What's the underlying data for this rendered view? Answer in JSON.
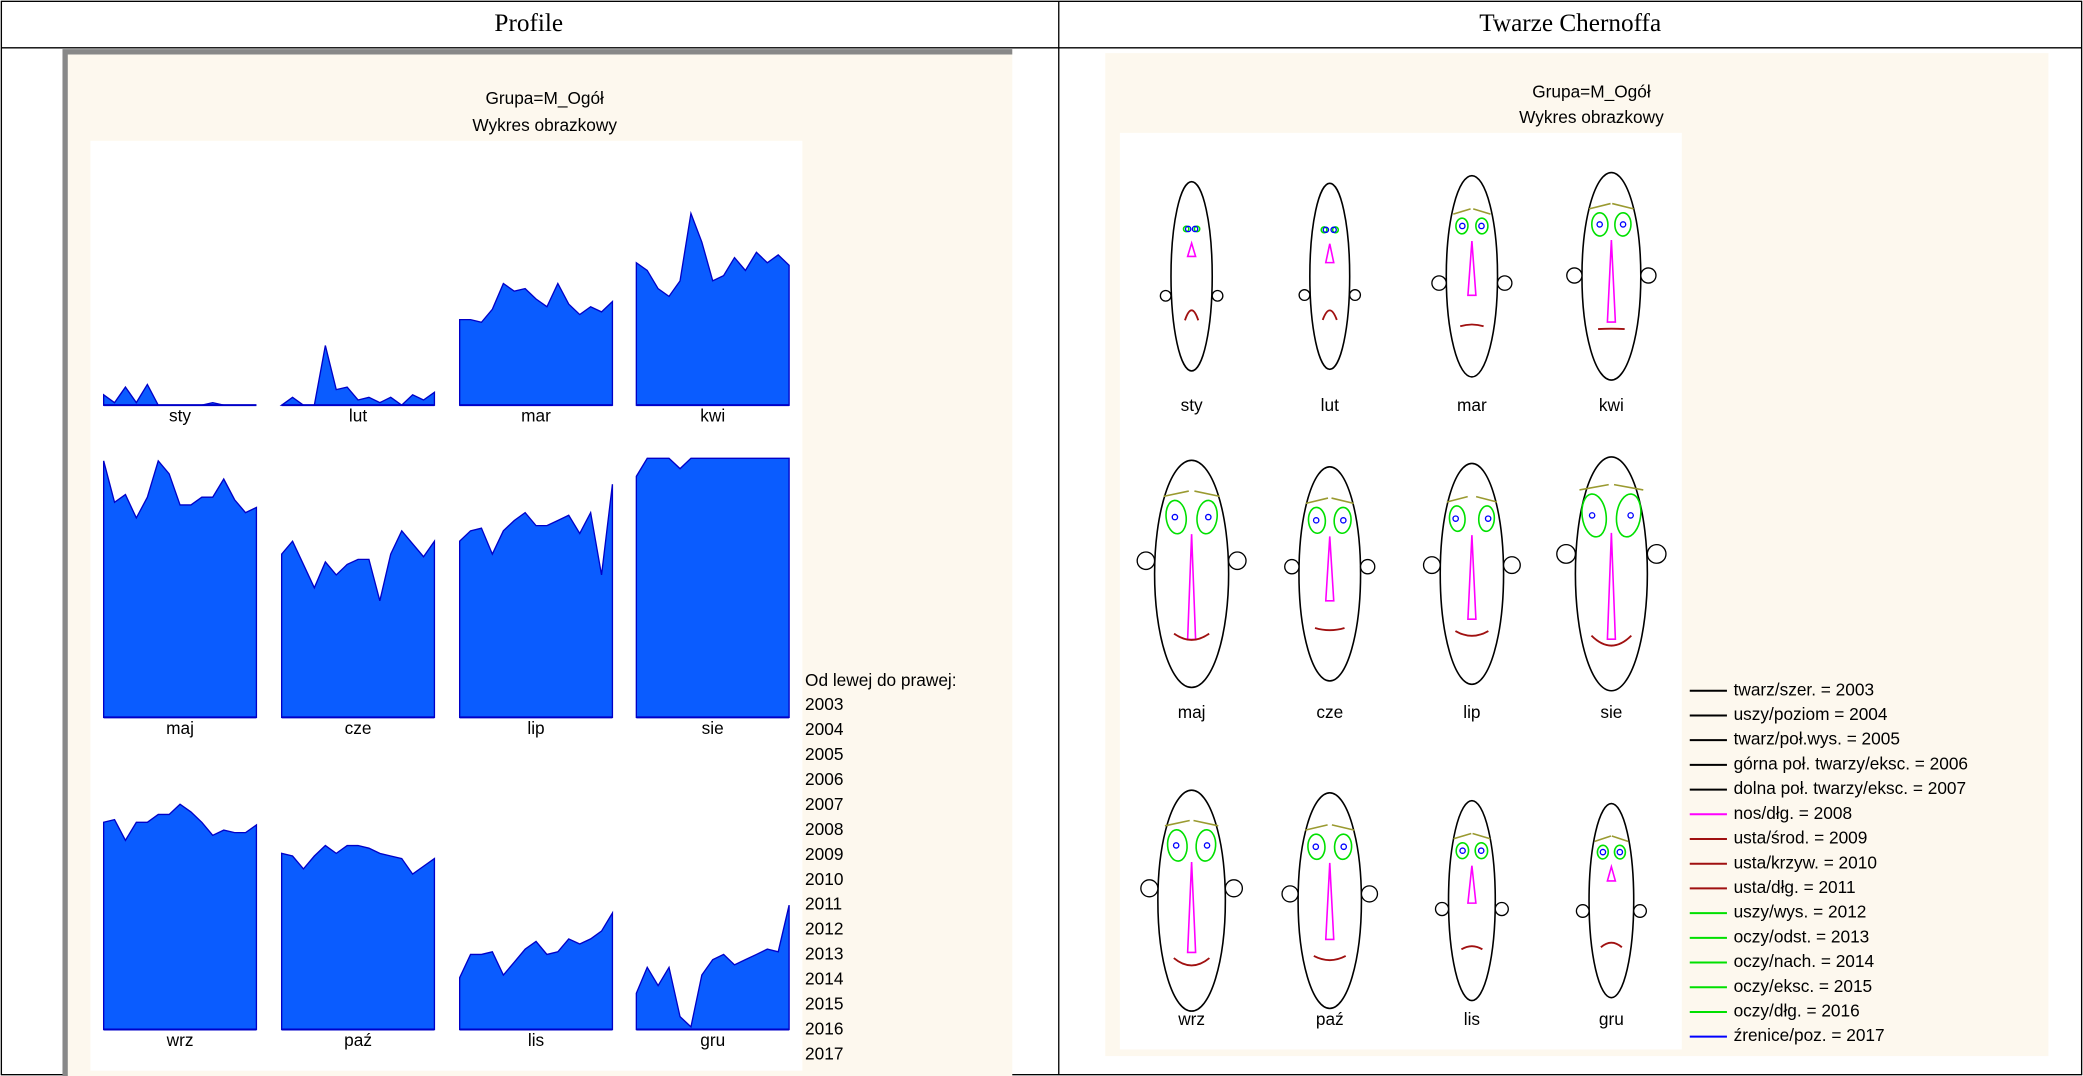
{
  "table": {
    "headers": [
      "Profile",
      "Twarze Chernoffa"
    ]
  },
  "chart_data": [
    {
      "type": "area",
      "title": "Grupa=M_Ogół",
      "subtitle": "Wykres obrazkowy",
      "legend_title": "Od lewej do prawej:",
      "x": [
        2003,
        2004,
        2005,
        2006,
        2007,
        2008,
        2009,
        2010,
        2011,
        2012,
        2013,
        2014,
        2015,
        2016,
        2017
      ],
      "ylim": [
        0,
        100
      ],
      "series": [
        {
          "name": "sty",
          "color": "#0a5cff",
          "values": [
            4,
            1,
            7,
            1,
            8,
            0,
            0,
            0,
            0,
            0,
            1,
            0,
            0,
            0,
            0
          ]
        },
        {
          "name": "lut",
          "color": "#0a5cff",
          "values": [
            0,
            3,
            0,
            0,
            23,
            6,
            7,
            2,
            3,
            1,
            3,
            0,
            4,
            2,
            5
          ]
        },
        {
          "name": "mar",
          "color": "#0a5cff",
          "values": [
            33,
            33,
            32,
            37,
            47,
            44,
            45,
            41,
            38,
            47,
            39,
            35,
            38,
            36,
            40
          ]
        },
        {
          "name": "kwi",
          "color": "#0a5cff",
          "values": [
            55,
            52,
            45,
            42,
            48,
            74,
            63,
            48,
            50,
            57,
            52,
            59,
            55,
            58,
            54
          ]
        },
        {
          "name": "maj",
          "color": "#0a5cff",
          "values": [
            99,
            83,
            86,
            77,
            85,
            99,
            94,
            82,
            82,
            85,
            85,
            92,
            84,
            79,
            81
          ]
        },
        {
          "name": "cze",
          "color": "#0a5cff",
          "values": [
            63,
            68,
            59,
            50,
            60,
            55,
            59,
            61,
            61,
            45,
            63,
            72,
            67,
            62,
            68
          ]
        },
        {
          "name": "lip",
          "color": "#0a5cff",
          "values": [
            68,
            72,
            73,
            63,
            72,
            76,
            79,
            74,
            74,
            76,
            78,
            71,
            79,
            55,
            90
          ]
        },
        {
          "name": "sie",
          "color": "#0a5cff",
          "values": [
            93,
            100,
            100,
            100,
            96,
            100,
            100,
            100,
            100,
            100,
            100,
            100,
            100,
            100,
            100
          ]
        },
        {
          "name": "wrz",
          "color": "#0a5cff",
          "values": [
            80,
            81,
            73,
            80,
            80,
            83,
            83,
            87,
            84,
            80,
            75,
            77,
            76,
            76,
            79
          ]
        },
        {
          "name": "paź",
          "color": "#0a5cff",
          "values": [
            68,
            67,
            62,
            67,
            71,
            68,
            71,
            71,
            70,
            68,
            67,
            66,
            60,
            63,
            66
          ]
        },
        {
          "name": "lis",
          "color": "#0a5cff",
          "values": [
            20,
            29,
            29,
            30,
            21,
            26,
            31,
            34,
            29,
            30,
            35,
            33,
            35,
            38,
            45
          ]
        },
        {
          "name": "gru",
          "color": "#0a5cff",
          "values": [
            14,
            24,
            17,
            24,
            5,
            1,
            21,
            27,
            29,
            25,
            27,
            29,
            31,
            30,
            48
          ]
        }
      ]
    },
    {
      "type": "chernoff",
      "title": "Grupa=M_Ogół",
      "subtitle": "Wykres obrazkowy",
      "categories": [
        "sty",
        "lut",
        "mar",
        "kwi",
        "maj",
        "cze",
        "lip",
        "sie",
        "wrz",
        "paź",
        "lis",
        "gru"
      ],
      "features": [
        {
          "name": "twarz/szer. = 2003",
          "color": "#000000"
        },
        {
          "name": "uszy/poziom = 2004",
          "color": "#000000"
        },
        {
          "name": "twarz/poł.wys. = 2005",
          "color": "#000000"
        },
        {
          "name": "górna poł. twarzy/eksc. = 2006",
          "color": "#000000"
        },
        {
          "name": "dolna poł. twarzy/eksc. = 2007",
          "color": "#000000"
        },
        {
          "name": "nos/dłg. = 2008",
          "color": "#ff00ff"
        },
        {
          "name": "usta/środ. = 2009",
          "color": "#a01010"
        },
        {
          "name": "usta/krzyw. = 2010",
          "color": "#a01010"
        },
        {
          "name": "usta/dłg. = 2011",
          "color": "#a01010"
        },
        {
          "name": "uszy/wys. = 2012",
          "color": "#00e000"
        },
        {
          "name": "oczy/odst. = 2013",
          "color": "#00e000"
        },
        {
          "name": "oczy/nach. = 2014",
          "color": "#00e000"
        },
        {
          "name": "oczy/eksc. = 2015",
          "color": "#00e000"
        },
        {
          "name": "oczy/dłg. = 2016",
          "color": "#00e000"
        },
        {
          "name": "źrenice/poz. = 2017",
          "color": "#0000ff"
        }
      ]
    }
  ]
}
